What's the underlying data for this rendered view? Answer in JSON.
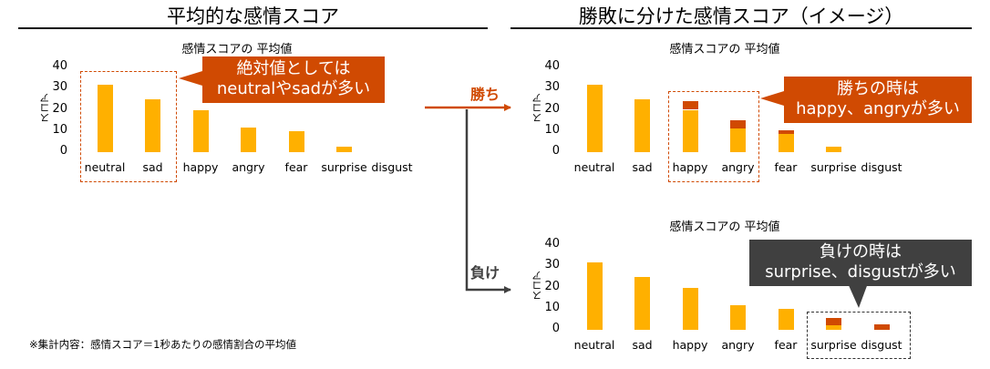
{
  "titles": {
    "left": "平均的な感情スコア",
    "right": "勝敗に分けた感情スコア（イメージ）"
  },
  "branches": {
    "win": "勝ち",
    "lose": "負け"
  },
  "callouts": {
    "left": [
      "絶対値としては",
      "neutralやsadが多い"
    ],
    "win": [
      "勝ちの時は",
      "happy、angryが多い"
    ],
    "lose": [
      "負けの時は",
      "surprise、disgustが多い"
    ]
  },
  "footnote": "※集計内容：感情スコア＝1秒あたりの感情割合の平均値",
  "colors": {
    "base": "#FFB000",
    "accent": "#D04A02",
    "callout_dark": "#404040"
  },
  "chart_data": [
    {
      "type": "bar",
      "title": "感情スコアの 平均値",
      "ylabel": "スコア",
      "ylim": [
        0,
        40
      ],
      "yticks": [
        0,
        10,
        20,
        30,
        40
      ],
      "categories": [
        "neutral",
        "sad",
        "happy",
        "angry",
        "fear",
        "surprise",
        "disgust"
      ],
      "series": [
        {
          "values": [
            32,
            25,
            20,
            11.5,
            10,
            2.5,
            0
          ],
          "color": "#FFB000"
        }
      ]
    },
    {
      "type": "bar",
      "stacked": true,
      "title": "感情スコアの 平均値",
      "ylabel": "スコア",
      "ylim": [
        0,
        40
      ],
      "yticks": [
        0,
        10,
        20,
        30,
        40
      ],
      "categories": [
        "neutral",
        "sad",
        "happy",
        "angry",
        "fear",
        "surprise",
        "disgust"
      ],
      "series": [
        {
          "values": [
            32,
            25,
            20,
            11,
            8.5,
            2.5,
            0
          ],
          "color": "#FFB000"
        },
        {
          "values": [
            0,
            0,
            4,
            4,
            2,
            0,
            0
          ],
          "color": "#D04A02"
        }
      ]
    },
    {
      "type": "bar",
      "stacked": true,
      "title": "感情スコアの 平均値",
      "ylabel": "スコア",
      "ylim": [
        0,
        40
      ],
      "yticks": [
        0,
        10,
        20,
        30,
        40
      ],
      "categories": [
        "neutral",
        "sad",
        "happy",
        "angry",
        "fear",
        "surprise",
        "disgust"
      ],
      "series": [
        {
          "values": [
            32,
            25,
            20,
            11.5,
            10,
            2,
            0
          ],
          "color": "#FFB000"
        },
        {
          "values": [
            0,
            0,
            0,
            0,
            0,
            3.5,
            2.5
          ],
          "color": "#D04A02"
        }
      ]
    }
  ]
}
